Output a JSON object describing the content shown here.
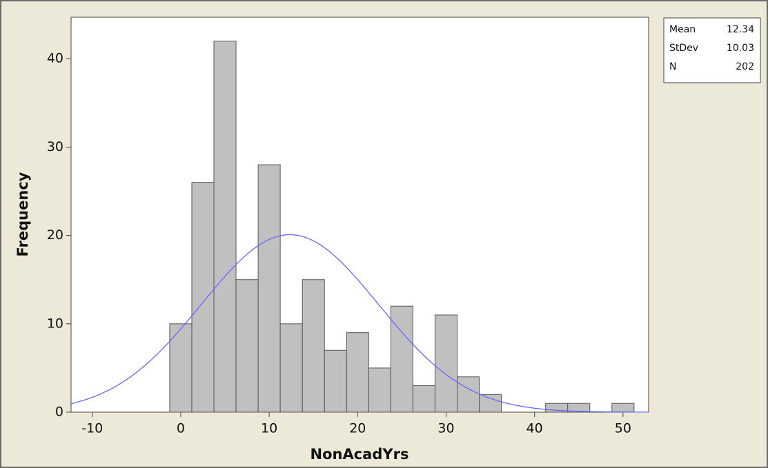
{
  "chart_data": {
    "type": "histogram",
    "x_label": "NonAcadYrs",
    "y_label": "Frequency",
    "bins": [
      -1.25,
      1.25,
      3.75,
      6.25,
      8.75,
      11.25,
      13.75,
      16.25,
      18.75,
      21.25,
      23.75,
      26.25,
      28.75,
      31.25,
      33.75,
      36.25,
      38.75,
      41.25,
      43.75,
      46.25,
      48.75,
      51.25
    ],
    "values": [
      10,
      26,
      42,
      15,
      28,
      10,
      15,
      7,
      9,
      5,
      12,
      3,
      11,
      4,
      2,
      0,
      0,
      1,
      1,
      0,
      1
    ],
    "color": "#c0c0c0",
    "curve_color": "#6666ff",
    "xlim": [
      -12.4,
      52.9
    ],
    "xticks": [
      -10,
      0,
      10,
      20,
      30,
      40,
      50
    ],
    "ylim": [
      0,
      44.7
    ],
    "yticks": [
      0,
      10,
      20,
      30,
      40
    ],
    "stats": [
      {
        "label": "Mean",
        "value": 12.34
      },
      {
        "label": "StDev",
        "value": 10.03
      },
      {
        "label": "N",
        "value": 202
      }
    ]
  }
}
